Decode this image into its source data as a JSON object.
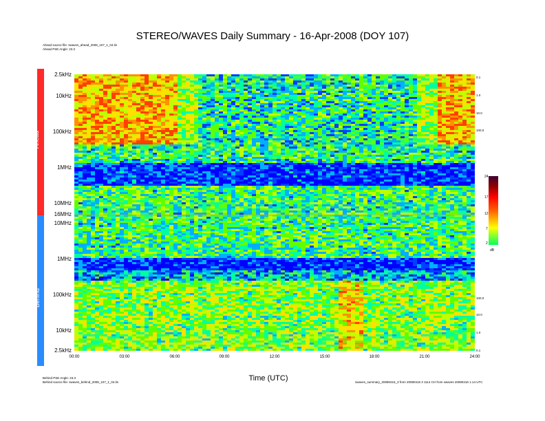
{
  "title": "STEREO/WAVES Daily Summary - 16-Apr-2008 (DOY 107)",
  "header_info": {
    "ahead_source": "Ahead source file: swaves_ahead_2008_107_1_04.lin",
    "ahead_pse": "Ahead PSE Angle: 23.3"
  },
  "footer_info": {
    "behind_pse": "Behind PSE Angle: 23.3",
    "behind_source": "Behind source file: swaves_behind_2008_107_1_04.lin",
    "right_note": "swaves_summary_20080416_3 from 20080416 3 1114 CH from swaves 20080416 1.14 UTC"
  },
  "chart_data": {
    "type": "heatmap",
    "title": "STEREO/WAVES Daily Summary - 16-Apr-2008 (DOY 107)",
    "xlabel": "Time (UTC)",
    "x_ticks": [
      "00:00",
      "03:00",
      "06:00",
      "09:00",
      "12:00",
      "15:00",
      "18:00",
      "21:00",
      "24:00"
    ],
    "xlim_hours": [
      0,
      24
    ],
    "panels": [
      {
        "name": "Ahead",
        "color": "#ff2020",
        "y_ticks": [
          "2.5kHz",
          "10kHz",
          "100kHz",
          "1MHz",
          "10MHz",
          "16MHz"
        ],
        "y_tick_freqs_hz": [
          2500,
          10000,
          100000,
          1000000,
          10000000,
          16000000
        ],
        "y_scale": "log",
        "right_ticks": [
          "0.1",
          "1.0",
          "10.0",
          "100.0"
        ]
      },
      {
        "name": "Behind",
        "color": "#2080ff",
        "y_ticks": [
          "10MHz",
          "1MHz",
          "100kHz",
          "10kHz",
          "2.5kHz"
        ],
        "y_tick_freqs_hz": [
          10000000,
          1000000,
          100000,
          10000,
          2500
        ],
        "y_scale": "log",
        "right_ticks": [
          "100.0",
          "10.0",
          "1.0",
          "0.1"
        ]
      }
    ],
    "colorbar": {
      "unit": "dB",
      "ticks": [
        "24",
        "17",
        "12",
        "7",
        "2"
      ],
      "range": [
        2,
        24
      ],
      "colors": [
        "#00ff00",
        "#ffff00",
        "#ff8000",
        "#ff0000",
        "#800000",
        "#400030"
      ]
    },
    "grid": false
  }
}
